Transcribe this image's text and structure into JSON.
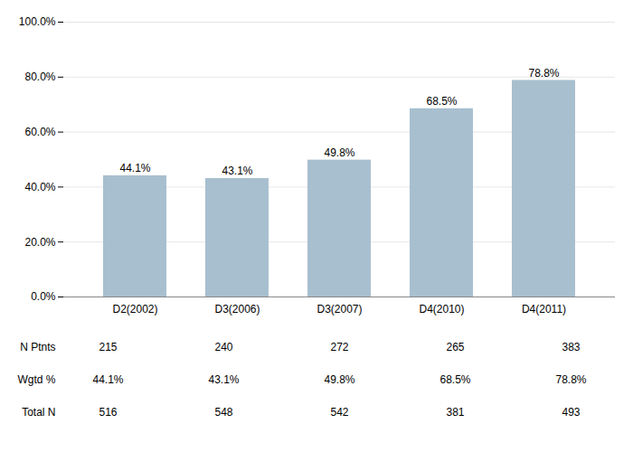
{
  "chart_data": {
    "type": "bar",
    "categories": [
      "D2(2002)",
      "D3(2006)",
      "D3(2007)",
      "D4(2010)",
      "D4(2011)"
    ],
    "values": [
      44.1,
      43.1,
      49.8,
      68.5,
      78.8
    ],
    "value_labels": [
      "44.1%",
      "43.1%",
      "49.8%",
      "68.5%",
      "78.8%"
    ],
    "data_labels": true,
    "color": "#a8bfcf",
    "ylim": [
      0,
      100
    ],
    "yticks": [
      {
        "value": 0,
        "label": "0.0%"
      },
      {
        "value": 20,
        "label": "20.0%"
      },
      {
        "value": 40,
        "label": "40.0%"
      },
      {
        "value": 60,
        "label": "60.0%"
      },
      {
        "value": 80,
        "label": "80.0%"
      },
      {
        "value": 100,
        "label": "100.0%"
      }
    ],
    "grid": true,
    "table": [
      {
        "label": "N Ptnts",
        "values": [
          215,
          240,
          272,
          265,
          383
        ]
      },
      {
        "label": "Wgtd %",
        "values": [
          44.1,
          43.1,
          49.8,
          68.5,
          78.8
        ],
        "value_labels": [
          "44.1%",
          "43.1%",
          "49.8%",
          "68.5%",
          "78.8%"
        ]
      },
      {
        "label": "Total N",
        "values": [
          516,
          548,
          542,
          381,
          493
        ]
      }
    ]
  }
}
